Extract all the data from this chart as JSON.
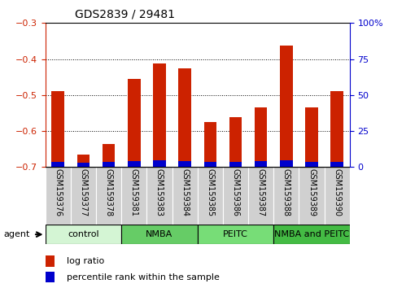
{
  "title": "GDS2839 / 29481",
  "samples": [
    "GSM159376",
    "GSM159377",
    "GSM159378",
    "GSM159381",
    "GSM159383",
    "GSM159384",
    "GSM159385",
    "GSM159386",
    "GSM159387",
    "GSM159388",
    "GSM159389",
    "GSM159390"
  ],
  "log_ratio": [
    -0.49,
    -0.665,
    -0.635,
    -0.455,
    -0.413,
    -0.425,
    -0.575,
    -0.562,
    -0.535,
    -0.363,
    -0.535,
    -0.49
  ],
  "percentile_rank": [
    3.5,
    3.2,
    3.8,
    4.0,
    4.5,
    4.2,
    3.6,
    3.5,
    4.0,
    4.5,
    3.8,
    3.5
  ],
  "ymin": -0.7,
  "ymax": -0.3,
  "yticks": [
    -0.7,
    -0.6,
    -0.5,
    -0.4,
    -0.3
  ],
  "right_yticks": [
    0,
    25,
    50,
    75,
    100
  ],
  "groups": [
    {
      "label": "control",
      "indices": [
        0,
        1,
        2
      ],
      "color": "#d4f5d4"
    },
    {
      "label": "NMBA",
      "indices": [
        3,
        4,
        5
      ],
      "color": "#66cc66"
    },
    {
      "label": "PEITC",
      "indices": [
        6,
        7,
        8
      ],
      "color": "#77dd77"
    },
    {
      "label": "NMBA and PEITC",
      "indices": [
        9,
        10,
        11
      ],
      "color": "#44bb44"
    }
  ],
  "bar_color_red": "#cc2200",
  "bar_color_blue": "#0000cc",
  "bar_width": 0.5,
  "agent_label": "agent",
  "legend_red": "log ratio",
  "legend_blue": "percentile rank within the sample",
  "title_fontsize": 10,
  "tick_fontsize": 8,
  "label_fontsize": 7,
  "group_label_fontsize": 8,
  "legend_fontsize": 8,
  "grid_yticks": [
    -0.4,
    -0.5,
    -0.6
  ]
}
